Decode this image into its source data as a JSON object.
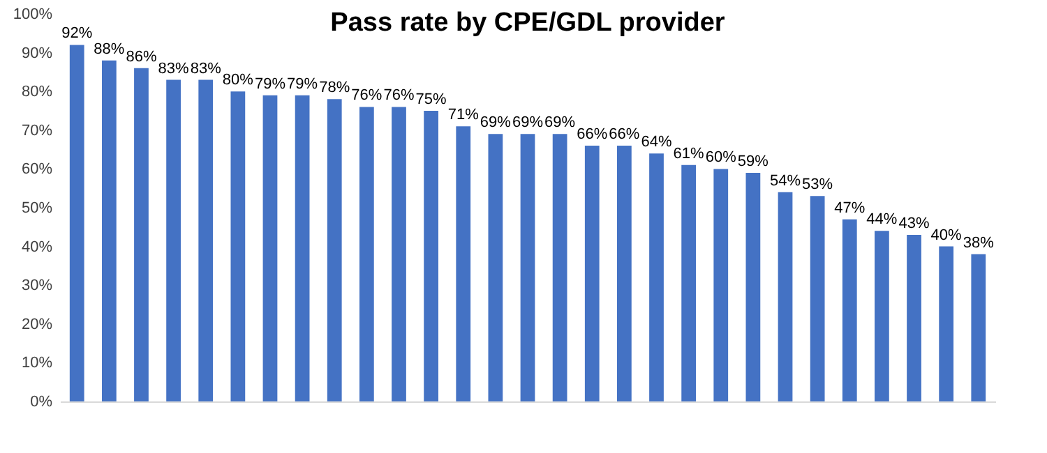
{
  "chart_data": {
    "type": "bar",
    "title": "Pass rate by CPE/GDL provider",
    "categories": [
      null,
      null,
      null,
      null,
      null,
      null,
      null,
      null,
      null,
      null,
      null,
      null,
      null,
      null,
      null,
      null,
      null,
      null,
      null,
      null,
      null,
      null,
      null,
      null,
      null,
      null,
      null,
      null,
      null
    ],
    "values": [
      92,
      88,
      86,
      83,
      83,
      80,
      79,
      79,
      78,
      76,
      76,
      75,
      71,
      69,
      69,
      69,
      66,
      66,
      64,
      61,
      60,
      59,
      54,
      53,
      47,
      44,
      43,
      40,
      38
    ],
    "value_labels": [
      "92%",
      "88%",
      "86%",
      "83%",
      "83%",
      "80%",
      "79%",
      "79%",
      "78%",
      "76%",
      "76%",
      "75%",
      "71%",
      "69%",
      "69%",
      "69%",
      "66%",
      "66%",
      "64%",
      "61%",
      "60%",
      "59%",
      "54%",
      "53%",
      "47%",
      "44%",
      "43%",
      "40%",
      "38%"
    ],
    "color": "#4472c4",
    "ylim": [
      0,
      100
    ],
    "yticks": [
      {
        "value": 0,
        "label": "0%"
      },
      {
        "value": 10,
        "label": "10%"
      },
      {
        "value": 20,
        "label": "20%"
      },
      {
        "value": 30,
        "label": "30%"
      },
      {
        "value": 40,
        "label": "40%"
      },
      {
        "value": 50,
        "label": "50%"
      },
      {
        "value": 60,
        "label": "60%"
      },
      {
        "value": 70,
        "label": "70%"
      },
      {
        "value": 80,
        "label": "80%"
      },
      {
        "value": 90,
        "label": "90%"
      },
      {
        "value": 100,
        "label": "100%"
      }
    ],
    "tick_labels": "y"
  }
}
